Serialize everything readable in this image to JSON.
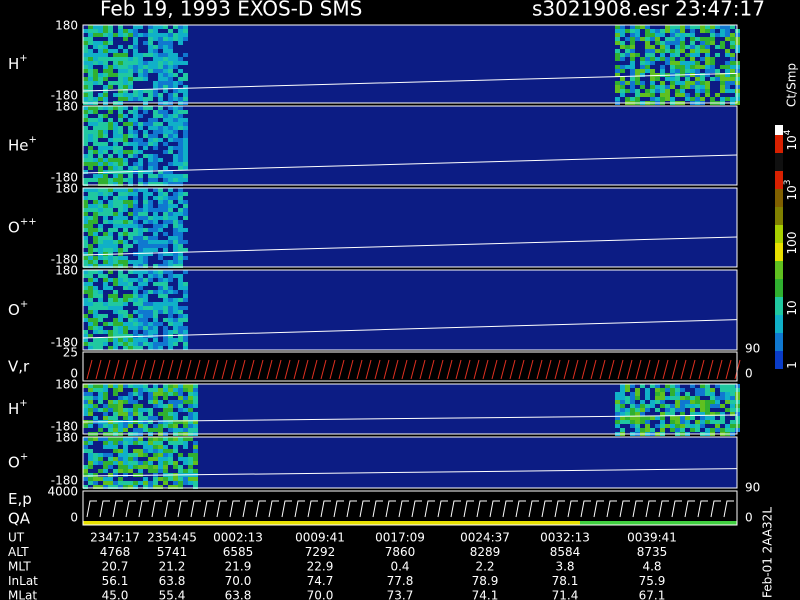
{
  "header": {
    "title": "Feb 19, 1993   EXOS-D SMS",
    "file": "s3021908.esr  23:47:17"
  },
  "panels": [
    {
      "label": "H",
      "sup": "+",
      "ticks": [
        "180",
        "-180"
      ]
    },
    {
      "label": "He",
      "sup": "+",
      "ticks": [
        "180",
        "-180"
      ]
    },
    {
      "label": "O",
      "sup": "++",
      "ticks": [
        "180",
        "-180"
      ]
    },
    {
      "label": "O",
      "sup": "+",
      "ticks": [
        "180",
        "-180"
      ]
    },
    {
      "label": "V,r",
      "ticks": [
        "25",
        "0"
      ],
      "right_ticks": [
        "90",
        "0"
      ]
    },
    {
      "label": "H",
      "sup": "+",
      "ticks": [
        "180",
        "-180"
      ]
    },
    {
      "label": "O",
      "sup": "+",
      "ticks": [
        "180",
        "-180"
      ]
    },
    {
      "label": "E,p",
      "label2": "QA",
      "ticks": [
        "4000",
        "0"
      ],
      "right_ticks": [
        "90",
        "0"
      ]
    }
  ],
  "colorbar": {
    "unit": "Ct/Smp",
    "labels": [
      {
        "base": "10",
        "exp": "4"
      },
      {
        "base": "10",
        "exp": "3"
      },
      {
        "base": "100"
      },
      {
        "base": "10"
      },
      {
        "base": "1"
      }
    ]
  },
  "table": {
    "rows": [
      {
        "label": "UT",
        "values": [
          "2347:17",
          "2354:45",
          "0002:13",
          "0009:41",
          "0017:09",
          "0024:37",
          "0032:13",
          "0039:41"
        ]
      },
      {
        "label": "ALT",
        "values": [
          "4768",
          "5741",
          "6585",
          "7292",
          "7860",
          "8289",
          "8584",
          "8735"
        ]
      },
      {
        "label": "MLT",
        "values": [
          "20.7",
          "21.2",
          "21.9",
          "22.9",
          "0.4",
          "2.2",
          "3.8",
          "4.8"
        ]
      },
      {
        "label": "InLat",
        "values": [
          "56.1",
          "63.8",
          "70.0",
          "74.7",
          "77.8",
          "78.9",
          "78.1",
          "75.9"
        ]
      },
      {
        "label": "MLat",
        "values": [
          "45.0",
          "55.4",
          "63.8",
          "70.0",
          "73.7",
          "74.1",
          "71.4",
          "67.1"
        ]
      }
    ]
  },
  "footer_code": "Feb-01 2AA32L"
}
